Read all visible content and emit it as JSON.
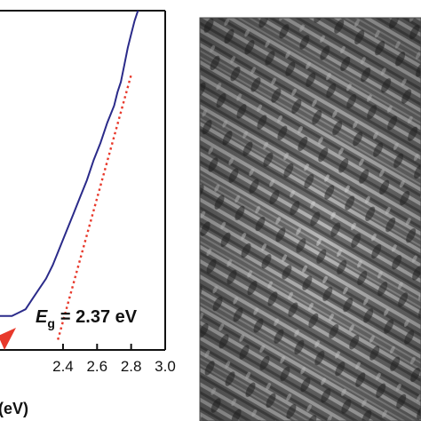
{
  "chart_data": {
    "type": "line",
    "title": "",
    "xlabel": "(eV)",
    "ylabel": "",
    "xlim": [
      2.03,
      3.0
    ],
    "ylim": [
      0,
      1
    ],
    "x_tick_labels": [
      "2.4",
      "2.6",
      "2.8",
      "3.0"
    ],
    "x_ticks": [
      2.4,
      2.6,
      2.8,
      3.0
    ],
    "grid": false,
    "series": [
      {
        "color": "#2b2b8a",
        "x": [
          2.03,
          2.06,
          2.1,
          2.14,
          2.18,
          2.22,
          2.26,
          2.3,
          2.34,
          2.38,
          2.42,
          2.46,
          2.5,
          2.54,
          2.58,
          2.62,
          2.66,
          2.7,
          2.72,
          2.74,
          2.76,
          2.78,
          2.8,
          2.82,
          2.84
        ],
        "y": [
          0.1,
          0.1,
          0.1,
          0.11,
          0.12,
          0.15,
          0.18,
          0.21,
          0.25,
          0.3,
          0.35,
          0.4,
          0.45,
          0.5,
          0.56,
          0.61,
          0.67,
          0.72,
          0.76,
          0.79,
          0.84,
          0.89,
          0.93,
          0.97,
          1.0
        ]
      },
      {
        "color": "#e8392b",
        "dashed": true,
        "x": [
          2.37,
          2.8
        ],
        "y": [
          0.03,
          0.81
        ]
      }
    ],
    "annotation": {
      "symbol": "E",
      "subscript": "g",
      "text": "= 2.37 eV"
    },
    "arrow_color": "#e8392b"
  },
  "micrograph": {
    "description_icon": "sem-micrograph-image"
  }
}
